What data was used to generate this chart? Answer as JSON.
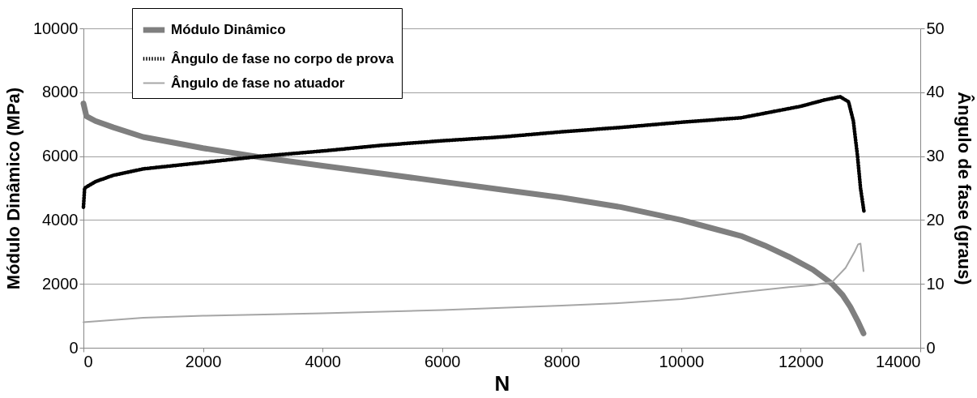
{
  "chart_data": {
    "type": "line",
    "xlabel": "N",
    "ylabel": "Módulo Dinâmico  (MPa)",
    "y2label": "Ângulo de fase (graus)",
    "xlim": [
      0,
      14000
    ],
    "xticks": [
      0,
      2000,
      4000,
      6000,
      8000,
      10000,
      12000,
      14000
    ],
    "ylim": [
      0,
      10000
    ],
    "yticks": [
      0,
      2000,
      4000,
      6000,
      8000,
      10000
    ],
    "y2lim": [
      0,
      50
    ],
    "y2ticks": [
      0,
      10,
      20,
      30,
      40,
      50
    ],
    "grid": "y",
    "legend": "top left",
    "marker": "none",
    "series": [
      {
        "name": "Módulo Dinâmico",
        "color": "#7f7f7f",
        "line_style": "solid",
        "x": [
          0,
          50,
          200,
          500,
          1000,
          2000,
          3000,
          4000,
          5000,
          6000,
          7000,
          8000,
          9000,
          10000,
          10500,
          11000,
          11400,
          11800,
          12200,
          12525,
          12700,
          12830,
          12950,
          13050
        ],
        "values": [
          7650,
          7250,
          7100,
          6900,
          6600,
          6250,
          5950,
          5700,
          5450,
          5200,
          4950,
          4700,
          4400,
          4000,
          3750,
          3500,
          3200,
          2850,
          2450,
          2000,
          1650,
          1280,
          850,
          450
        ]
      },
      {
        "name": "Ângulo de fase no corpo de prova",
        "color": "#000000",
        "line_style": "dotted",
        "axis": "y2",
        "x": [
          0,
          20,
          200,
          500,
          1000,
          2000,
          3000,
          4000,
          5000,
          6000,
          7000,
          8000,
          9000,
          10000,
          11000,
          12000,
          12400,
          12660,
          12800,
          12880,
          12950,
          13000,
          13060
        ],
        "values": [
          22,
          25,
          26,
          27,
          28,
          29,
          30,
          30.8,
          31.7,
          32.4,
          33,
          33.8,
          34.5,
          35.3,
          36,
          37.8,
          38.8,
          39.3,
          38.5,
          35.5,
          30,
          25,
          21.2
        ]
      },
      {
        "name": "Ângulo de fase no atuador",
        "color": "#a6a6a6",
        "line_style": "solid",
        "axis": "y2",
        "x": [
          0,
          1000,
          2000,
          4000,
          6000,
          8000,
          9000,
          10000,
          11000,
          11800,
          12200,
          12525,
          12750,
          12900,
          12960,
          13000,
          13050
        ],
        "values": [
          4,
          4.7,
          5,
          5.4,
          5.9,
          6.6,
          7,
          7.6,
          8.7,
          9.5,
          9.8,
          10.3,
          12.5,
          15,
          16.2,
          16.3,
          12
        ]
      }
    ]
  }
}
